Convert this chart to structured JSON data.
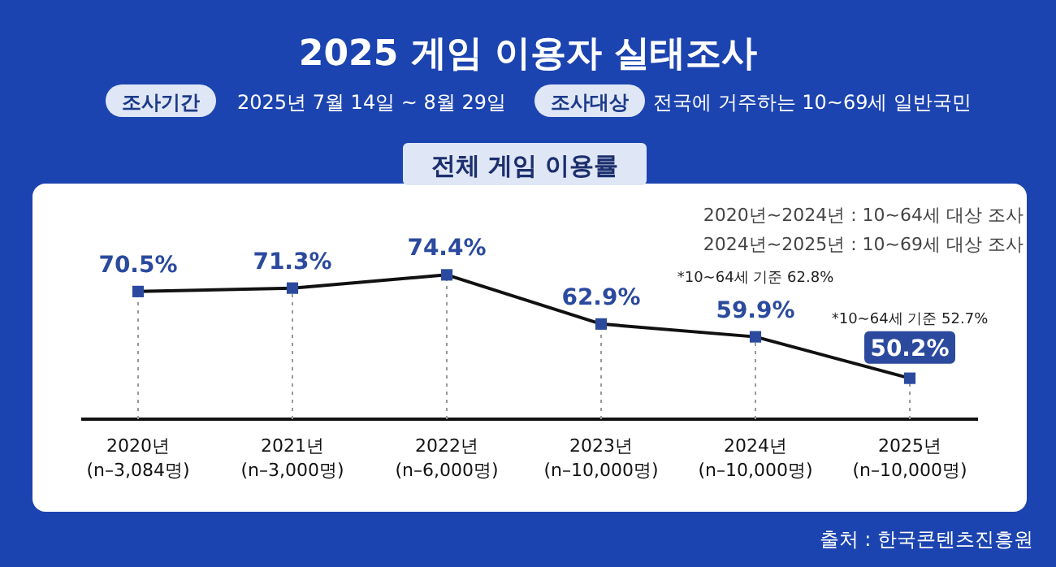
{
  "chart_data": {
    "type": "line",
    "title": "2025 게임 이용자 실태조사",
    "subtitle": "전체 게임 이용률",
    "categories": [
      "2020년\n(n–3,084명)",
      "2021년\n(n–3,000명)",
      "2022년\n(n–6,000명)",
      "2023년\n(n–10,000명)",
      "2024년\n(n–10,000명)",
      "2025년\n(n–10,000명)"
    ],
    "series": [
      {
        "color": "#111111",
        "values": [
          70.5,
          71.3,
          74.4,
          62.9,
          59.9,
          50.2
        ],
        "value_labels": [
          "70.5%",
          "71.3%",
          "74.4%",
          "62.9%",
          "59.9%",
          "50.2%"
        ]
      }
    ],
    "marker": "square",
    "line_style": "solid",
    "grid": "x",
    "annotations": [
      "조사기간",
      "2025년 7월 14일 ~ 8월 29일",
      "조사대상",
      "전국에 거주하는 10~69세 일반국민",
      "2020년~2024년 : 10~64세 대상 조사",
      "2024년~2025년 : 10~69세 대상 조사",
      "*10~64세 기준 62.8%",
      "*10~64세 기준 52.7%",
      "출처 : 한국콘텐츠진흥원"
    ]
  }
}
